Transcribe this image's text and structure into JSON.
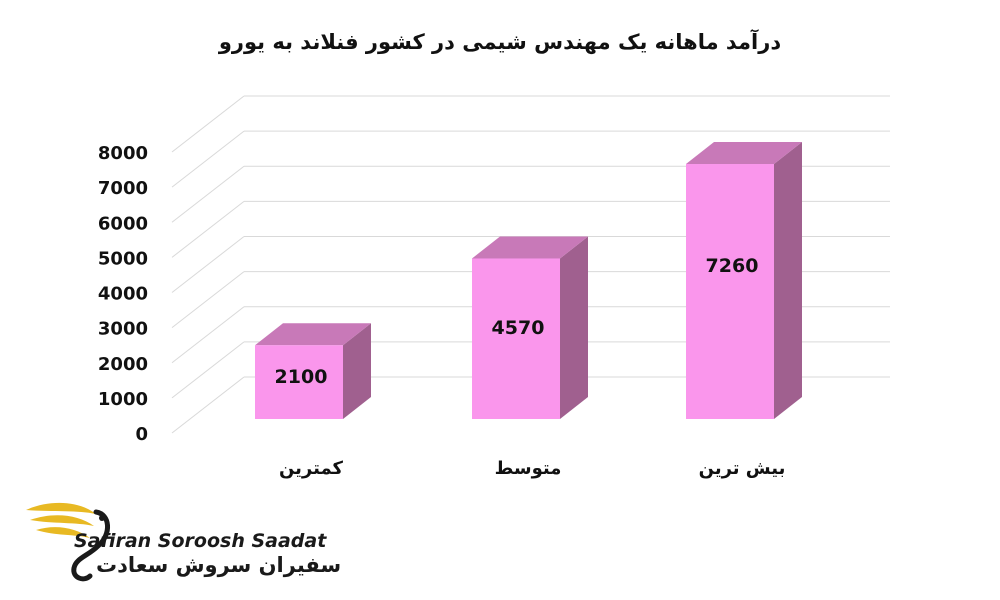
{
  "chart_data": {
    "type": "bar",
    "title": "درآمد ماهانه یک مهندس شیمی در کشور فنلاند به یورو",
    "categories": [
      "کمترین",
      "متوسط",
      "بیش ترین"
    ],
    "values": [
      2100,
      4570,
      7260
    ],
    "ylim": [
      0,
      8000
    ],
    "yticks": [
      0,
      1000,
      2000,
      3000,
      4000,
      5000,
      6000,
      7000,
      8000
    ],
    "grid": true,
    "legend": "none"
  },
  "colors": {
    "bar_front": "#fa96ec",
    "bar_top": "#c879b8",
    "bar_side": "#a0608f",
    "grid": "#d9d9d9",
    "text": "#111111",
    "logo_gold": "#e8b923",
    "logo_dark": "#1a1a1a"
  },
  "brand": {
    "name_en": "Safiran Soroosh Saadat",
    "name_fa": "سفیران سروش سعادت"
  }
}
